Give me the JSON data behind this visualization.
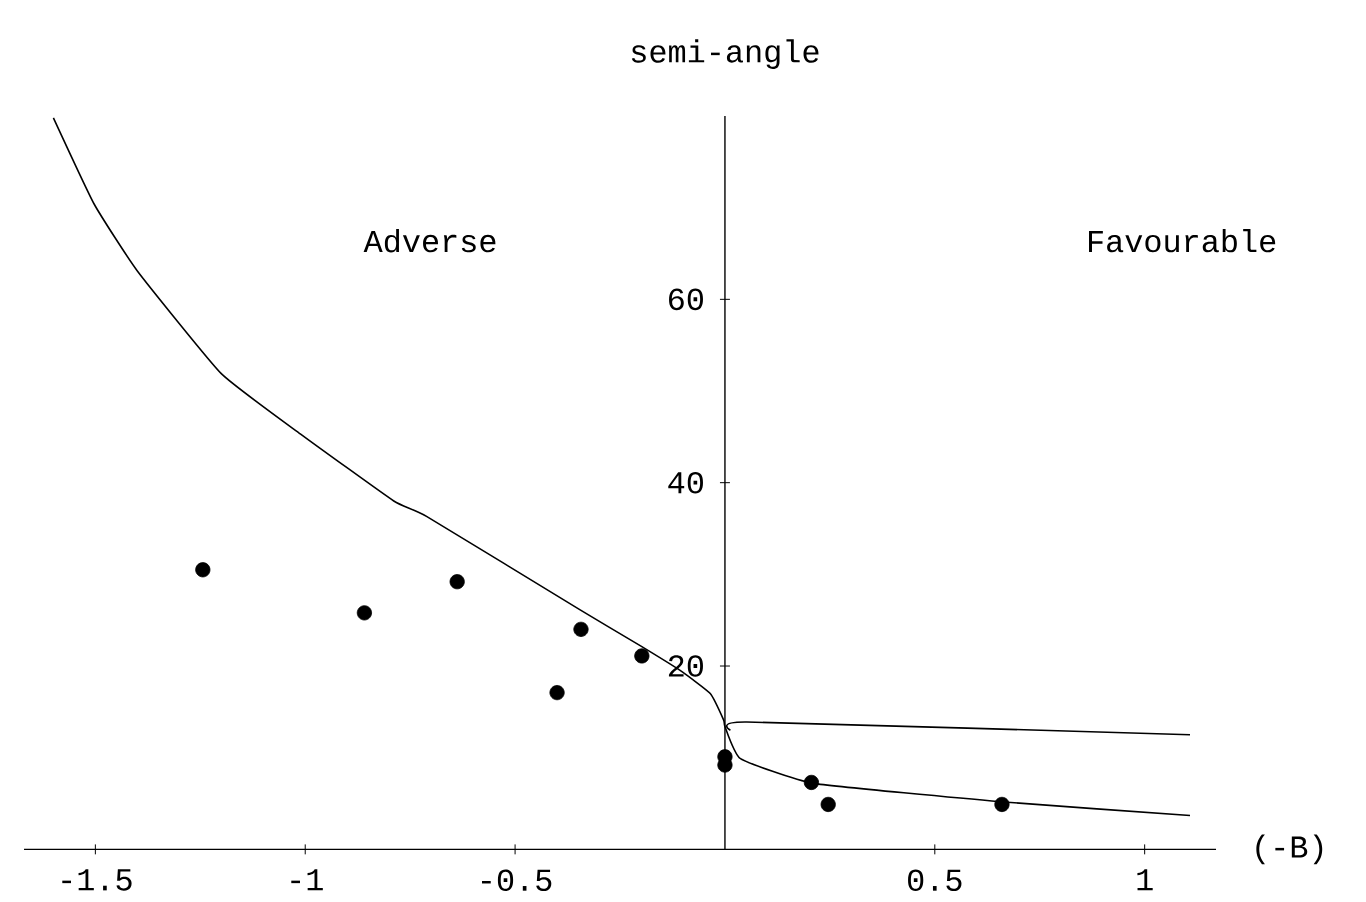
{
  "chart_data": {
    "type": "line",
    "xlabel": "(-B)",
    "ylabel": "semi-angle",
    "annotations": [
      "Adverse",
      "Favourable"
    ],
    "xlim": [
      -1.67,
      1.17
    ],
    "ylim": [
      0,
      80
    ],
    "xticks": [
      -1.5,
      -1,
      -0.5,
      0.5,
      1
    ],
    "yticks": [
      20,
      40,
      60
    ],
    "grid": false,
    "series": [
      {
        "color": "#000000",
        "marker": "none",
        "line_style": "solid",
        "x": [
          -1.6,
          -1.503,
          -1.4,
          -1.2,
          -1.011,
          -0.789,
          -0.71,
          -0.344,
          -0.201,
          -0.106,
          -0.035,
          -0.003,
          0,
          0.037,
          0.211,
          0.656,
          1.108
        ],
        "values": [
          79.8,
          70.4,
          63.1,
          51.9,
          45.3,
          38.0,
          36.3,
          26.1,
          22.2,
          19.5,
          17.0,
          14.1,
          13.4,
          9.9,
          7.2,
          5.2,
          3.7
        ]
      },
      {
        "color": "#000000",
        "marker": "none",
        "line_style": "solid",
        "x": [
          0.013,
          0.052,
          1.108
        ],
        "values": [
          13.0,
          13.9,
          12.5
        ]
      },
      {
        "type": "scatter",
        "color": "#000000",
        "marker": "circle",
        "x": [
          -1.244,
          -0.859,
          -0.638,
          -0.343,
          -0.4,
          -0.198,
          0,
          0,
          0.206,
          0.246,
          0.66
        ],
        "values": [
          30.5,
          25.8,
          29.2,
          24.0,
          17.1,
          21.1,
          10.1,
          9.2,
          7.3,
          4.9,
          4.9
        ]
      }
    ]
  }
}
